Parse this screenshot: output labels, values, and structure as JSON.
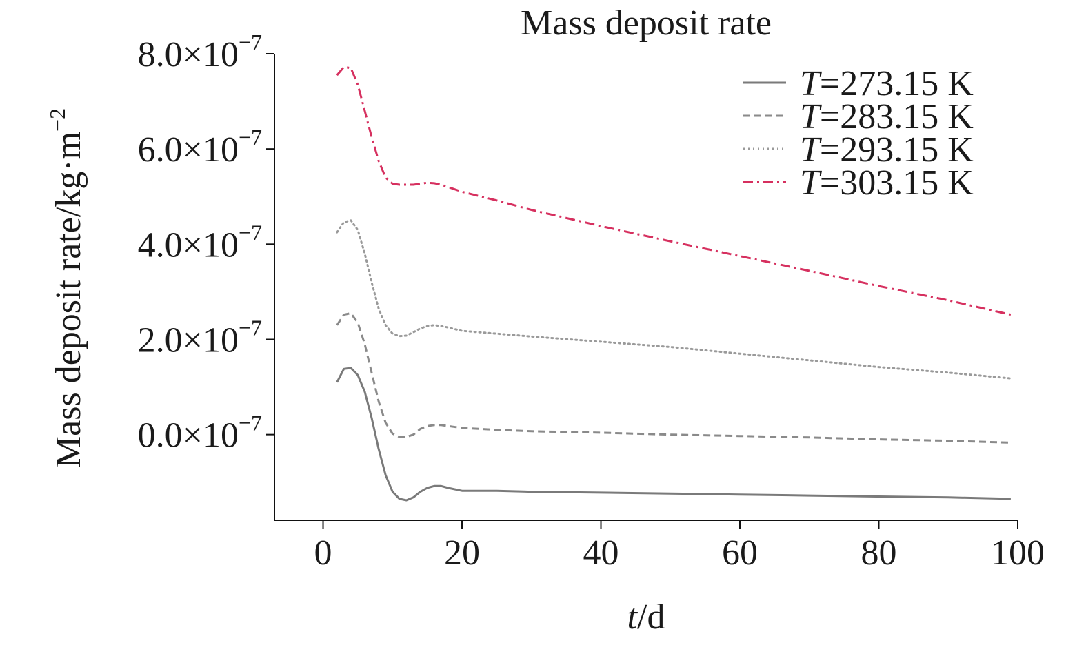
{
  "chart_data": {
    "type": "line",
    "title": "Mass deposit rate",
    "xlabel": {
      "italic": "t",
      "rest": "/d"
    },
    "ylabel": {
      "text": "Mass deposit rate/kg·m",
      "sup": "−2"
    },
    "xlim": [
      -7,
      100
    ],
    "ylim": [
      -1.8,
      8.0
    ],
    "x_ticks": [
      0,
      20,
      40,
      60,
      80,
      100
    ],
    "y_ticks": [
      {
        "value": 0,
        "mantissa": "0.0×10",
        "exp": "−7"
      },
      {
        "value": 2,
        "mantissa": "2.0×10",
        "exp": "−7"
      },
      {
        "value": 4,
        "mantissa": "4.0×10",
        "exp": "−7"
      },
      {
        "value": 6,
        "mantissa": "6.0×10",
        "exp": "−7"
      },
      {
        "value": 8,
        "mantissa": "8.0×10",
        "exp": "−7"
      }
    ],
    "y_scale_note": "values in units of 1e-7 kg·m^-2",
    "grid": false,
    "legend_position": "top-right",
    "x": [
      2,
      3,
      4,
      5,
      6,
      7,
      8,
      9,
      10,
      11,
      12,
      13,
      14,
      15,
      16,
      17,
      18,
      20,
      25,
      30,
      40,
      50,
      60,
      70,
      80,
      90,
      99
    ],
    "series": [
      {
        "name": "T=273.15 K",
        "legend": {
          "italic": "T",
          "rest": "=273.15 K"
        },
        "style": "solid",
        "color": "#7a7a7a",
        "values": [
          1.1,
          1.38,
          1.4,
          1.25,
          0.9,
          0.35,
          -0.3,
          -0.85,
          -1.2,
          -1.35,
          -1.38,
          -1.32,
          -1.2,
          -1.12,
          -1.08,
          -1.08,
          -1.12,
          -1.18,
          -1.18,
          -1.2,
          -1.22,
          -1.24,
          -1.26,
          -1.28,
          -1.3,
          -1.32,
          -1.35
        ]
      },
      {
        "name": "T=283.15 K",
        "legend": {
          "italic": "T",
          "rest": "=283.15 K"
        },
        "style": "dashed",
        "color": "#8a8a8a",
        "values": [
          2.3,
          2.52,
          2.55,
          2.35,
          1.9,
          1.3,
          0.7,
          0.25,
          0.02,
          -0.05,
          -0.05,
          0.0,
          0.12,
          0.18,
          0.2,
          0.2,
          0.18,
          0.14,
          0.1,
          0.07,
          0.04,
          0.0,
          -0.03,
          -0.06,
          -0.1,
          -0.13,
          -0.17
        ]
      },
      {
        "name": "T=293.15 K",
        "legend": {
          "italic": "T",
          "rest": "=293.15 K"
        },
        "style": "dotted",
        "color": "#9a9a9a",
        "values": [
          4.25,
          4.46,
          4.5,
          4.3,
          3.8,
          3.2,
          2.65,
          2.3,
          2.12,
          2.07,
          2.08,
          2.15,
          2.23,
          2.28,
          2.3,
          2.28,
          2.25,
          2.18,
          2.12,
          2.06,
          1.95,
          1.84,
          1.7,
          1.56,
          1.42,
          1.3,
          1.18
        ]
      },
      {
        "name": "T=303.15 K",
        "legend": {
          "italic": "T",
          "rest": "=303.15 K"
        },
        "style": "dashdot",
        "color": "#d6305f",
        "values": [
          7.55,
          7.72,
          7.7,
          7.35,
          6.8,
          6.25,
          5.75,
          5.4,
          5.27,
          5.25,
          5.25,
          5.25,
          5.27,
          5.29,
          5.28,
          5.25,
          5.2,
          5.1,
          4.92,
          4.72,
          4.38,
          4.06,
          3.75,
          3.44,
          3.12,
          2.82,
          2.52
        ]
      }
    ]
  }
}
